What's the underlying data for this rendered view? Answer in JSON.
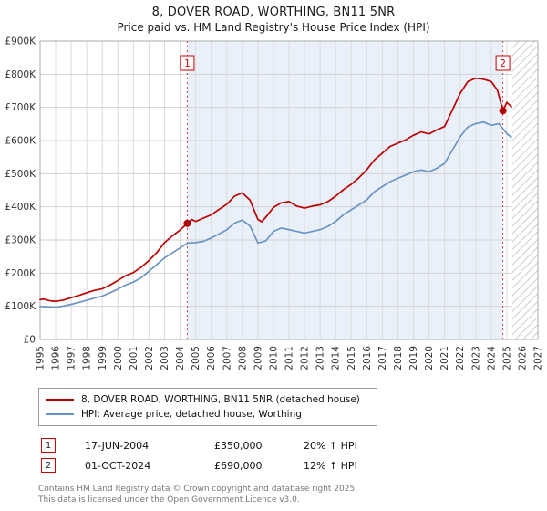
{
  "title": "8, DOVER ROAD, WORTHING, BN11 5NR",
  "subtitle": "Price paid vs. HM Land Registry's House Price Index (HPI)",
  "legend": {
    "items": [
      {
        "label": "8, DOVER ROAD, WORTHING, BN11 5NR (detached house)",
        "color": "#bb0000"
      },
      {
        "label": "HPI: Average price, detached house, Worthing",
        "color": "#6b93c4"
      }
    ]
  },
  "annotations": [
    {
      "num": "1",
      "date": "17-JUN-2004",
      "price": "£350,000",
      "hpi": "20% ↑ HPI"
    },
    {
      "num": "2",
      "date": "01-OCT-2024",
      "price": "£690,000",
      "hpi": "12% ↑ HPI"
    }
  ],
  "footer": {
    "line1": "Contains HM Land Registry data © Crown copyright and database right 2025.",
    "line2": "This data is licensed under the Open Government Licence v3.0."
  },
  "chart_data": {
    "type": "line",
    "title": "8, DOVER ROAD, WORTHING, BN11 5NR",
    "subtitle": "Price paid vs. HM Land Registry's House Price Index (HPI)",
    "xlabel": "",
    "ylabel": "",
    "x_range": [
      1995,
      2027
    ],
    "y_range": [
      0,
      900000
    ],
    "grid": true,
    "legend_position": "bottom",
    "x_ticks": [
      1995,
      1996,
      1997,
      1998,
      1999,
      2000,
      2001,
      2002,
      2003,
      2004,
      2005,
      2006,
      2007,
      2008,
      2009,
      2010,
      2011,
      2012,
      2013,
      2014,
      2015,
      2016,
      2017,
      2018,
      2019,
      2020,
      2021,
      2022,
      2023,
      2024,
      2025,
      2026,
      2027
    ],
    "y_ticks": [
      {
        "v": 0,
        "label": "£0"
      },
      {
        "v": 100000,
        "label": "£100K"
      },
      {
        "v": 200000,
        "label": "£200K"
      },
      {
        "v": 300000,
        "label": "£300K"
      },
      {
        "v": 400000,
        "label": "£400K"
      },
      {
        "v": 500000,
        "label": "£500K"
      },
      {
        "v": 600000,
        "label": "£600K"
      },
      {
        "v": 700000,
        "label": "£700K"
      },
      {
        "v": 800000,
        "label": "£800K"
      },
      {
        "v": 900000,
        "label": "£900K"
      }
    ],
    "series": [
      {
        "name": "8, DOVER ROAD, WORTHING, BN11 5NR (detached house)",
        "color": "#bb0000",
        "points": [
          [
            1995.0,
            120000
          ],
          [
            1995.25,
            122000
          ],
          [
            1995.5,
            118000
          ],
          [
            1995.75,
            116000
          ],
          [
            1996.0,
            115000
          ],
          [
            1996.5,
            119000
          ],
          [
            1997.0,
            126000
          ],
          [
            1997.5,
            133000
          ],
          [
            1998.0,
            141000
          ],
          [
            1998.5,
            148000
          ],
          [
            1999.0,
            153000
          ],
          [
            1999.5,
            164000
          ],
          [
            2000.0,
            178000
          ],
          [
            2000.5,
            192000
          ],
          [
            2001.0,
            202000
          ],
          [
            2001.5,
            218000
          ],
          [
            2002.0,
            238000
          ],
          [
            2002.5,
            262000
          ],
          [
            2003.0,
            292000
          ],
          [
            2003.5,
            312000
          ],
          [
            2004.0,
            330000
          ],
          [
            2004.46,
            350000
          ],
          [
            2004.75,
            362000
          ],
          [
            2005.0,
            356000
          ],
          [
            2005.5,
            366000
          ],
          [
            2006.0,
            376000
          ],
          [
            2006.5,
            392000
          ],
          [
            2007.0,
            408000
          ],
          [
            2007.5,
            432000
          ],
          [
            2008.0,
            442000
          ],
          [
            2008.5,
            420000
          ],
          [
            2009.0,
            362000
          ],
          [
            2009.25,
            355000
          ],
          [
            2009.5,
            368000
          ],
          [
            2010.0,
            398000
          ],
          [
            2010.5,
            412000
          ],
          [
            2011.0,
            416000
          ],
          [
            2011.5,
            402000
          ],
          [
            2012.0,
            396000
          ],
          [
            2012.5,
            402000
          ],
          [
            2013.0,
            406000
          ],
          [
            2013.5,
            416000
          ],
          [
            2014.0,
            432000
          ],
          [
            2014.5,
            452000
          ],
          [
            2015.0,
            468000
          ],
          [
            2015.5,
            488000
          ],
          [
            2016.0,
            512000
          ],
          [
            2016.5,
            542000
          ],
          [
            2017.0,
            562000
          ],
          [
            2017.5,
            582000
          ],
          [
            2018.0,
            592000
          ],
          [
            2018.5,
            602000
          ],
          [
            2019.0,
            616000
          ],
          [
            2019.5,
            626000
          ],
          [
            2020.0,
            620000
          ],
          [
            2020.5,
            632000
          ],
          [
            2021.0,
            642000
          ],
          [
            2021.5,
            692000
          ],
          [
            2022.0,
            742000
          ],
          [
            2022.5,
            778000
          ],
          [
            2023.0,
            788000
          ],
          [
            2023.5,
            785000
          ],
          [
            2024.0,
            778000
          ],
          [
            2024.4,
            752000
          ],
          [
            2024.75,
            690000
          ],
          [
            2025.0,
            715000
          ],
          [
            2025.3,
            702000
          ]
        ]
      },
      {
        "name": "HPI: Average price, detached house, Worthing",
        "color": "#6b93c4",
        "points": [
          [
            1995.0,
            100000
          ],
          [
            1995.5,
            98000
          ],
          [
            1996.0,
            97000
          ],
          [
            1996.5,
            101000
          ],
          [
            1997.0,
            106000
          ],
          [
            1997.5,
            112000
          ],
          [
            1998.0,
            118000
          ],
          [
            1998.5,
            125000
          ],
          [
            1999.0,
            131000
          ],
          [
            1999.5,
            141000
          ],
          [
            2000.0,
            152000
          ],
          [
            2000.5,
            164000
          ],
          [
            2001.0,
            173000
          ],
          [
            2001.5,
            186000
          ],
          [
            2002.0,
            206000
          ],
          [
            2002.5,
            226000
          ],
          [
            2003.0,
            246000
          ],
          [
            2003.5,
            261000
          ],
          [
            2004.0,
            276000
          ],
          [
            2004.5,
            291000
          ],
          [
            2005.0,
            292000
          ],
          [
            2005.5,
            296000
          ],
          [
            2006.0,
            306000
          ],
          [
            2006.5,
            318000
          ],
          [
            2007.0,
            331000
          ],
          [
            2007.5,
            351000
          ],
          [
            2008.0,
            360000
          ],
          [
            2008.5,
            342000
          ],
          [
            2009.0,
            291000
          ],
          [
            2009.5,
            297000
          ],
          [
            2010.0,
            326000
          ],
          [
            2010.5,
            336000
          ],
          [
            2011.0,
            331000
          ],
          [
            2011.5,
            326000
          ],
          [
            2012.0,
            321000
          ],
          [
            2012.5,
            326000
          ],
          [
            2013.0,
            331000
          ],
          [
            2013.5,
            341000
          ],
          [
            2014.0,
            356000
          ],
          [
            2014.5,
            376000
          ],
          [
            2015.0,
            391000
          ],
          [
            2015.5,
            406000
          ],
          [
            2016.0,
            421000
          ],
          [
            2016.5,
            446000
          ],
          [
            2017.0,
            461000
          ],
          [
            2017.5,
            476000
          ],
          [
            2018.0,
            486000
          ],
          [
            2018.5,
            496000
          ],
          [
            2019.0,
            506000
          ],
          [
            2019.5,
            511000
          ],
          [
            2020.0,
            506000
          ],
          [
            2020.5,
            516000
          ],
          [
            2021.0,
            531000
          ],
          [
            2021.5,
            571000
          ],
          [
            2022.0,
            611000
          ],
          [
            2022.5,
            641000
          ],
          [
            2023.0,
            651000
          ],
          [
            2023.5,
            656000
          ],
          [
            2024.0,
            646000
          ],
          [
            2024.5,
            651000
          ],
          [
            2025.0,
            621000
          ],
          [
            2025.3,
            610000
          ]
        ]
      }
    ],
    "sales": [
      {
        "label": "1",
        "x": 2004.46,
        "y": 350000
      },
      {
        "label": "2",
        "x": 2024.75,
        "y": 690000
      }
    ],
    "shaded_region": {
      "from": 2004.46,
      "to": 2024.75,
      "color": "#e9f0f9"
    },
    "hatched_region": {
      "from": 2025.35,
      "to": 2027
    },
    "dashed_line_color": "#cc4444",
    "marker_color": "#b00000"
  }
}
